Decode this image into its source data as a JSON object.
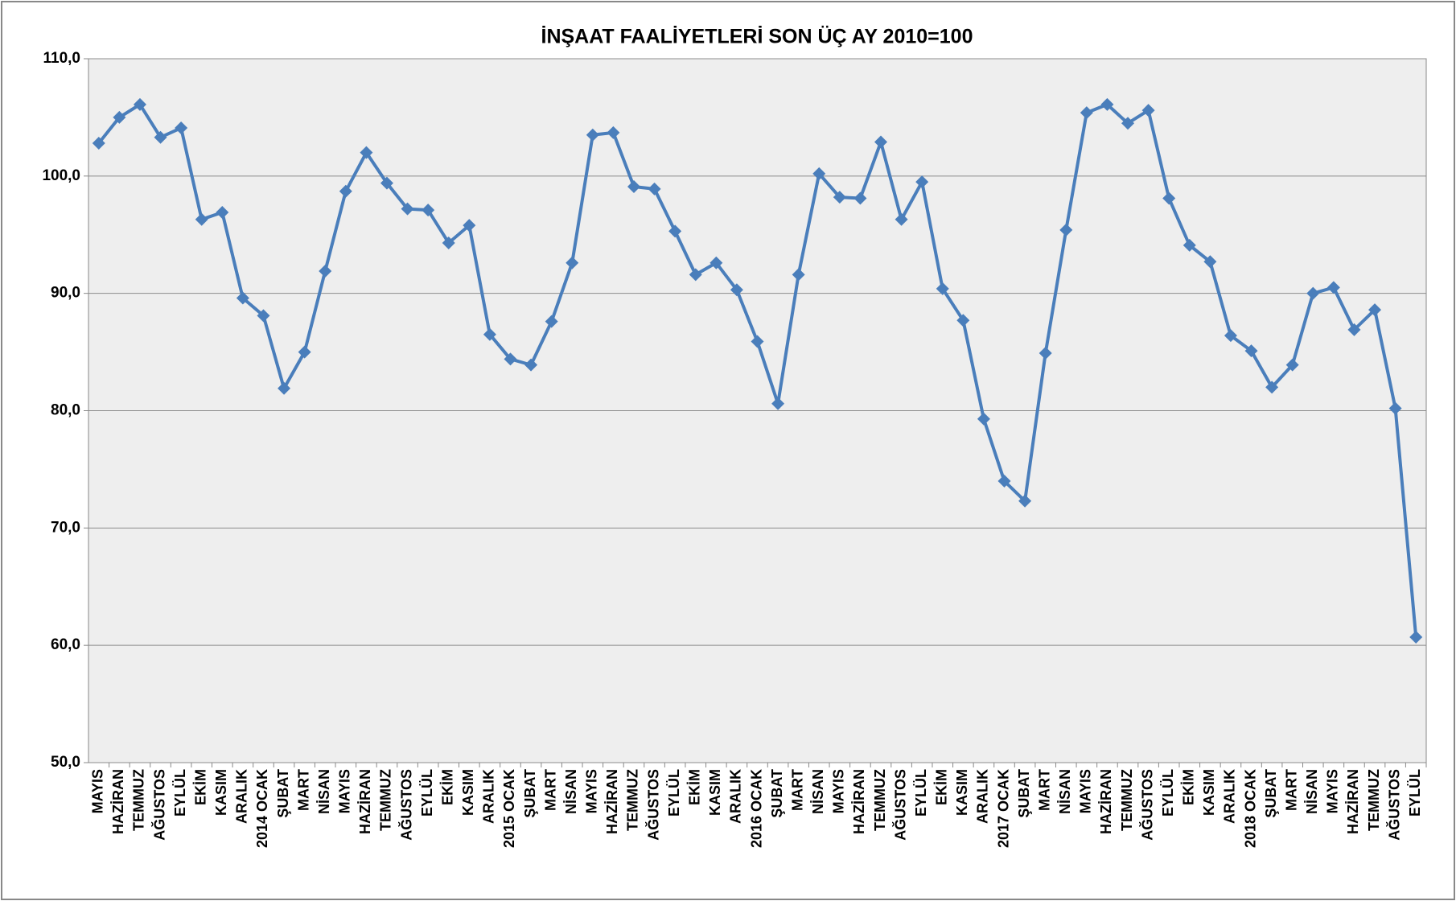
{
  "chart_data": {
    "type": "line",
    "title": "İNŞAAT FAALİYETLERİ SON ÜÇ AY 2010=100",
    "categories": [
      "MAYIS",
      "HAZİRAN",
      "TEMMUZ",
      "AĞUSTOS",
      "EYLÜL",
      "EKİM",
      "KASIM",
      "ARALIK",
      "2014 OCAK",
      "ŞUBAT",
      "MART",
      "NİSAN",
      "MAYIS",
      "HAZİRAN",
      "TEMMUZ",
      "AĞUSTOS",
      "EYLÜL",
      "EKİM",
      "KASIM",
      "ARALIK",
      "2015 OCAK",
      "ŞUBAT",
      "MART",
      "NİSAN",
      "MAYIS",
      "HAZİRAN",
      "TEMMUZ",
      "AĞUSTOS",
      "EYLÜL",
      "EKİM",
      "KASIM",
      "ARALIK",
      "2016 OCAK",
      "ŞUBAT",
      "MART",
      "NİSAN",
      "MAYIS",
      "HAZİRAN",
      "TEMMUZ",
      "AĞUSTOS",
      "EYLÜL",
      "EKİM",
      "KASIM",
      "ARALIK",
      "2017 OCAK",
      "ŞUBAT",
      "MART",
      "NİSAN",
      "MAYIS",
      "HAZİRAN",
      "TEMMUZ",
      "AĞUSTOS",
      "EYLÜL",
      "EKİM",
      "KASIM",
      "ARALIK",
      "2018 OCAK",
      "ŞUBAT",
      "MART",
      "NİSAN",
      "MAYIS",
      "HAZİRAN",
      "TEMMUZ",
      "AĞUSTOS",
      "EYLÜL"
    ],
    "values": [
      102.8,
      105.0,
      106.1,
      103.3,
      104.1,
      96.3,
      96.9,
      89.6,
      88.1,
      81.9,
      85.0,
      91.9,
      98.7,
      102.0,
      99.4,
      97.2,
      97.1,
      94.3,
      95.8,
      86.5,
      84.4,
      83.9,
      87.6,
      92.6,
      103.5,
      103.7,
      99.1,
      98.9,
      95.3,
      91.6,
      92.6,
      90.3,
      85.9,
      80.6,
      91.6,
      100.2,
      98.2,
      98.1,
      102.9,
      96.3,
      99.5,
      90.4,
      87.7,
      79.3,
      74.0,
      72.3,
      84.9,
      95.4,
      105.4,
      106.1,
      104.5,
      105.6,
      98.1,
      94.1,
      92.7,
      86.4,
      85.1,
      82.0,
      83.9,
      90.0,
      90.5,
      86.9,
      88.6,
      80.2,
      60.7
    ],
    "color": "#4a7ebb",
    "ylim": [
      50,
      110
    ],
    "yticks": [
      {
        "value": 50,
        "label": "50,0"
      },
      {
        "value": 60,
        "label": "60,0"
      },
      {
        "value": 70,
        "label": "70,0"
      },
      {
        "value": 80,
        "label": "80,0"
      },
      {
        "value": 90,
        "label": "90,0"
      },
      {
        "value": 100,
        "label": "100,0"
      },
      {
        "value": 110,
        "label": "110,0"
      }
    ],
    "grid": true
  }
}
